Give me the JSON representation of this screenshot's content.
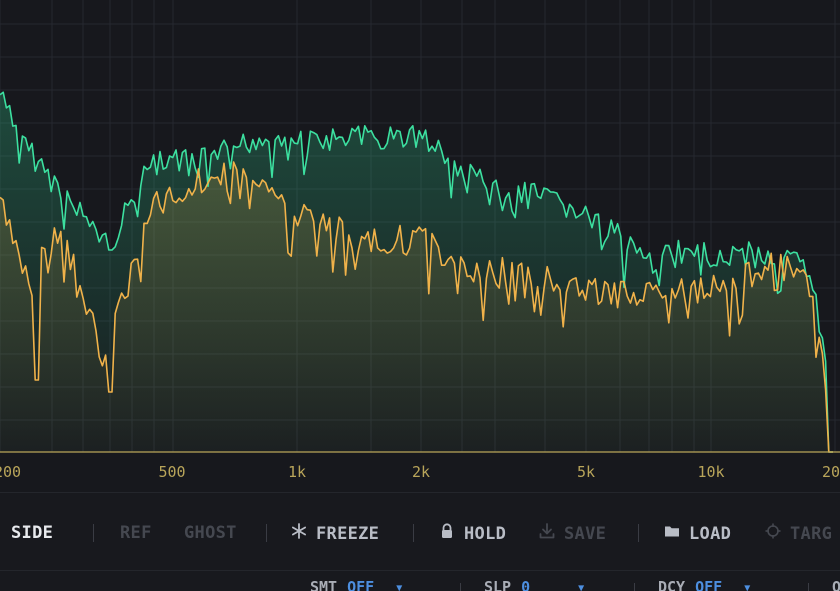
{
  "spectrum": {
    "freq_labels": [
      "200",
      "500",
      "1k",
      "2k",
      "5k",
      "10k",
      "20"
    ],
    "colors": {
      "background": "#17181d",
      "grid": "#262830",
      "side_trace": "#3ce0a0",
      "ref_trace": "#f0b24a",
      "baseline": "#b9a55a"
    }
  },
  "toolbar": {
    "side_label": "SIDE",
    "ref_label": "REF",
    "ghost_label": "GHOST",
    "freeze_label": "FREEZE",
    "freeze_icon": "asterisk-icon",
    "hold_label": "HOLD",
    "hold_icon": "lock-icon",
    "save_label": "SAVE",
    "save_icon": "download-icon",
    "load_label": "LOAD",
    "load_icon": "folder-icon",
    "target_label": "TARG",
    "target_icon": "crosshair-icon"
  },
  "status": {
    "smt_key": "SMT",
    "smt_value": "OFF",
    "slp_key": "SLP",
    "slp_value": "0",
    "dcy_key": "DCY",
    "dcy_value": "OFF",
    "last_key": "O"
  }
}
